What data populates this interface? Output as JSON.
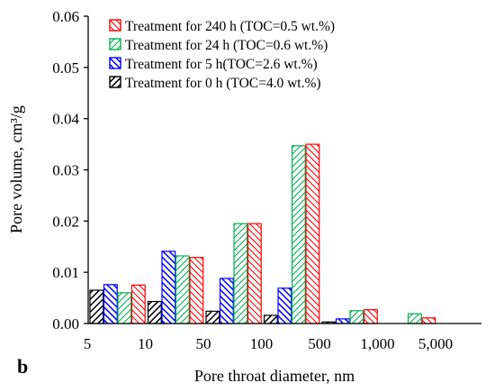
{
  "chart_data": {
    "type": "bar",
    "panel_label": "b",
    "xlabel": "Pore throat diameter, nm",
    "ylabel": "Pore volume, cm³/g",
    "ylim": [
      0,
      0.06
    ],
    "yticks": [
      0.0,
      0.01,
      0.02,
      0.03,
      0.04,
      0.05,
      0.06
    ],
    "ytick_labels": [
      "0.00",
      "0.01",
      "0.02",
      "0.03",
      "0.04",
      "0.05",
      "0.06"
    ],
    "xtick_labels": [
      "5",
      "10",
      "50",
      "100",
      "500",
      "1,000",
      "5,000"
    ],
    "grid": false,
    "legend_position": "top-left",
    "series": [
      {
        "name": "Treatment for 0 h (TOC=4.0 wt.%)",
        "color": "#000000",
        "hatch": "black",
        "values": [
          0.0065,
          0.0043,
          0.0024,
          0.0016,
          0.0003,
          0.0,
          0.0
        ]
      },
      {
        "name": "Treatment for 5 h(TOC=2.6 wt.%)",
        "color": "#0000ff",
        "hatch": "blue",
        "values": [
          0.0076,
          0.0141,
          0.0088,
          0.0069,
          0.0009,
          0.0,
          0.0
        ]
      },
      {
        "name": "Treatment for 24 h (TOC=0.6 wt.%)",
        "color": "#00b050",
        "hatch": "green",
        "values": [
          0.006,
          0.0132,
          0.0195,
          0.0347,
          0.0025,
          0.0019,
          0.0
        ]
      },
      {
        "name": "Treatment for 240 h (TOC=0.5 wt.%)",
        "color": "#ff0000",
        "hatch": "red",
        "values": [
          0.0075,
          0.0129,
          0.0195,
          0.035,
          0.0027,
          0.0011,
          0.0
        ]
      }
    ],
    "legend_order": [
      3,
      2,
      1,
      0
    ]
  }
}
